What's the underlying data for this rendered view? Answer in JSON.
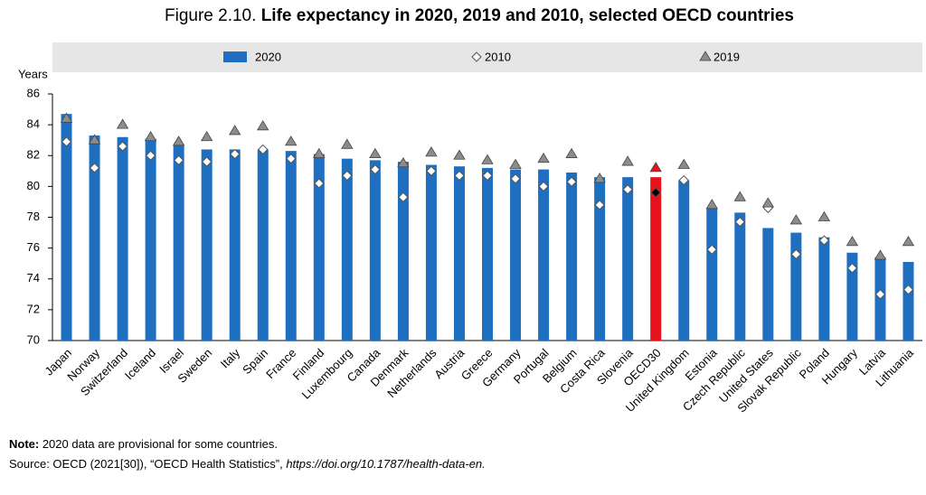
{
  "chart_data": {
    "type": "bar",
    "figure_label": "Figure 2.10.",
    "title": "Life expectancy in 2020, 2019 and 2010, selected OECD countries",
    "y_label": "Years",
    "categories": [
      "Japan",
      "Norway",
      "Switzerland",
      "Iceland",
      "Israel",
      "Sweden",
      "Italy",
      "Spain",
      "France",
      "Finland",
      "Luxembourg",
      "Canada",
      "Denmark",
      "Netherlands",
      "Austria",
      "Greece",
      "Germany",
      "Portugal",
      "Belgium",
      "Costa Rica",
      "Slovenia",
      "OECD30",
      "United Kingdom",
      "Estonia",
      "Czech Republic",
      "United States",
      "Slovak Republic",
      "Poland",
      "Hungary",
      "Latvia",
      "Lithuania"
    ],
    "series": [
      {
        "name": "2020",
        "marker": "bar",
        "color": "#1f6fc0",
        "highlight_color": "#e3121b",
        "values": [
          84.7,
          83.3,
          83.2,
          83.1,
          82.7,
          82.4,
          82.4,
          82.4,
          82.3,
          82.1,
          81.8,
          81.7,
          81.6,
          81.4,
          81.3,
          81.2,
          81.1,
          81.1,
          80.9,
          80.6,
          80.6,
          80.6,
          80.4,
          78.6,
          78.3,
          77.3,
          77.0,
          76.7,
          75.7,
          75.4,
          75.1
        ]
      },
      {
        "name": "2010",
        "marker": "diamond",
        "color": "#ffffff",
        "highlight_color": "#000000",
        "values": [
          82.9,
          81.2,
          82.6,
          82.0,
          81.7,
          81.6,
          82.1,
          82.4,
          81.8,
          80.2,
          80.7,
          81.1,
          79.3,
          81.0,
          80.7,
          80.7,
          80.5,
          80.0,
          80.3,
          78.8,
          79.8,
          79.6,
          80.4,
          75.9,
          77.7,
          78.6,
          75.6,
          76.5,
          74.7,
          73.0,
          73.3
        ]
      },
      {
        "name": "2019",
        "marker": "triangle",
        "color": "#8c8c8c",
        "highlight_color": "#e3121b",
        "values": [
          84.4,
          83.0,
          84.0,
          83.2,
          82.9,
          83.2,
          83.6,
          83.9,
          82.9,
          82.1,
          82.7,
          82.1,
          81.5,
          82.2,
          82.0,
          81.7,
          81.4,
          81.8,
          82.1,
          80.5,
          81.6,
          81.2,
          81.4,
          78.8,
          79.3,
          78.9,
          77.8,
          78.0,
          76.4,
          75.5,
          76.4
        ]
      }
    ],
    "highlight_category": "OECD30",
    "ylim": [
      70,
      86
    ],
    "yticks": [
      70,
      72,
      74,
      76,
      78,
      80,
      82,
      84,
      86
    ],
    "grid": false,
    "note_label": "Note:",
    "note": " 2020 data are provisional for some countries.",
    "source": "Source: OECD (2021[30]), “OECD Health Statistics”, ",
    "source_url": "https://doi.org/10.1787/health-data-en."
  }
}
